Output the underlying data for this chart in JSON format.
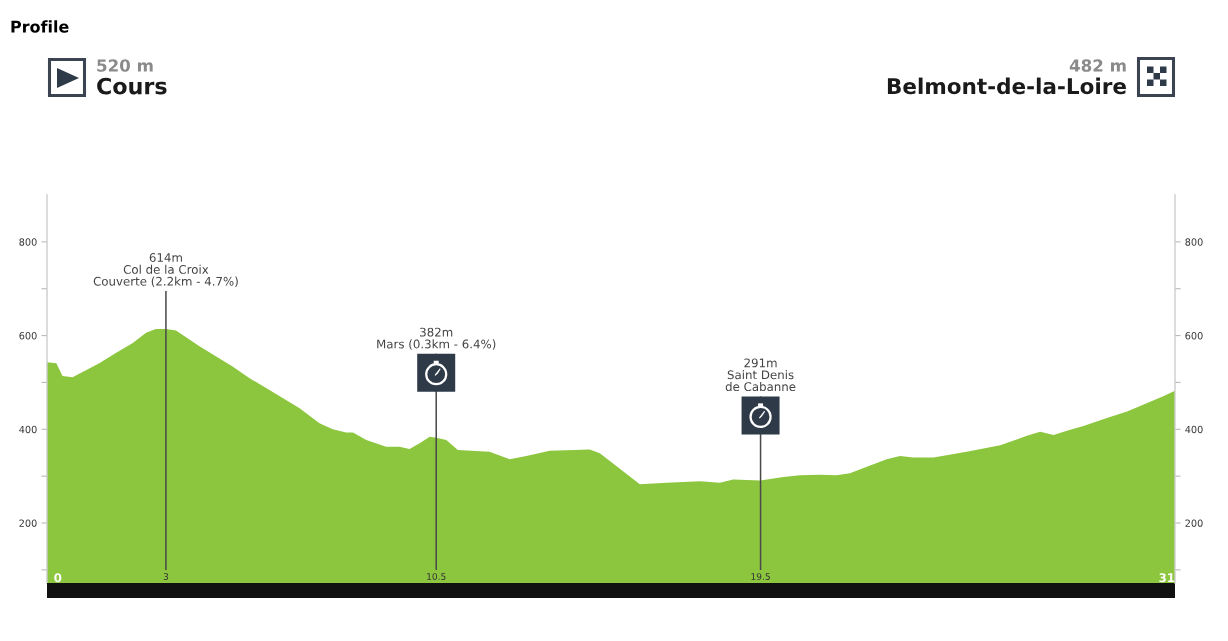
{
  "chart_data": {
    "type": "area",
    "title": "Profile",
    "annotations": [
      "520 m",
      "Cours",
      "482 m",
      "Belmont-de-la-Loire"
    ],
    "x": [
      -0.3,
      -0.04,
      0.13,
      0.41,
      1.15,
      1.61,
      2.08,
      2.45,
      2.72,
      3,
      3.28,
      3.93,
      4.85,
      5.32,
      5.78,
      6.71,
      7.26,
      7.63,
      8.0,
      8.19,
      8.56,
      9.11,
      9.48,
      9.76,
      10.04,
      10.32,
      10.5,
      10.78,
      11.1,
      11.98,
      12.54,
      13.0,
      13.65,
      14.76,
      15.04,
      16.15,
      16.89,
      17.82,
      18.37,
      18.74,
      19.5,
      20.13,
      20.59,
      21.15,
      21.61,
      21.98,
      22.45,
      23.0,
      23.37,
      23.74,
      24.3,
      25.22,
      26.15,
      26.89,
      27.26,
      27.63,
      28.0,
      28.46,
      29.11,
      29.67,
      30.23,
      30.69,
      31
    ],
    "values": [
      543,
      541,
      514,
      511,
      541,
      563,
      584,
      606,
      614,
      614,
      611,
      577,
      534,
      509,
      488,
      445,
      413,
      400,
      393,
      393,
      377,
      363,
      363,
      358,
      370,
      384,
      382,
      377,
      356,
      352,
      336,
      343,
      354,
      357,
      349,
      283,
      286,
      289,
      286,
      293,
      291,
      298,
      302,
      303,
      302,
      306,
      320,
      336,
      343,
      340,
      340,
      352,
      366,
      386,
      395,
      388,
      397,
      407,
      424,
      438,
      456,
      471,
      482
    ],
    "color": "#8cc63e",
    "xlim": [
      -0.3,
      31
    ],
    "xticks": [
      0,
      3,
      10.5,
      19.5,
      31
    ],
    "ylim": [
      72,
      900
    ],
    "yticks": [
      {
        "value": 100,
        "label": null
      },
      200,
      {
        "value": 300,
        "label": null
      },
      400,
      {
        "value": 500,
        "label": null
      },
      600,
      {
        "value": 700,
        "label": null
      },
      800
    ],
    "y2lim": [
      72,
      900
    ],
    "y2ticks": [
      {
        "value": 100,
        "label": null
      },
      200,
      {
        "value": 300,
        "label": null
      },
      400,
      {
        "value": 500,
        "label": null
      },
      600,
      {
        "value": 700,
        "label": null
      },
      800
    ],
    "ref_lines": [
      {
        "axis": "x",
        "value": 3,
        "label": "614m\nCol de la Croix\nCouverte (2.2km - 4.7%)"
      },
      {
        "axis": "x",
        "value": 10.5,
        "label": "382m\nMars (0.3km - 6.4%)"
      },
      {
        "axis": "x",
        "value": 19.5,
        "label": "291m\nSaint Denis\nde Cabanne"
      }
    ]
  }
}
